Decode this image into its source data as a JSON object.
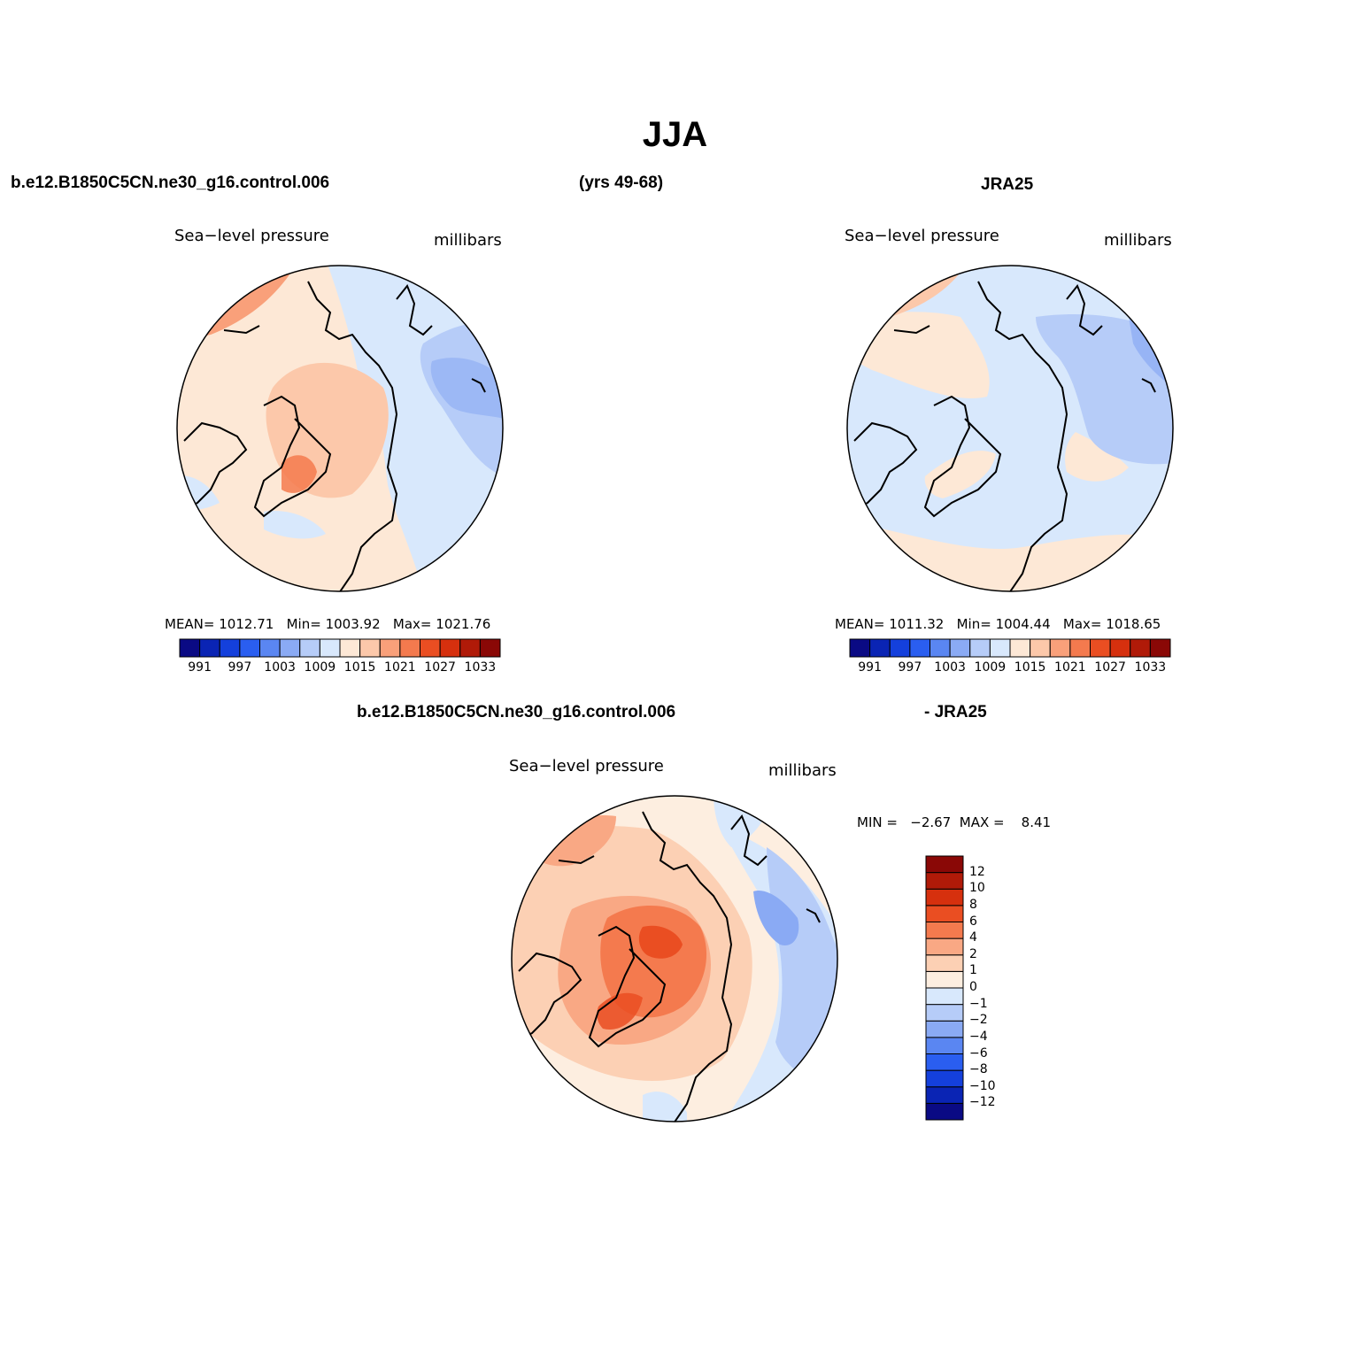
{
  "figure": {
    "title": "JJA",
    "case_name": "b.e12.B1850C5CN.ne30_g16.control.006",
    "years": "(yrs 49-68)",
    "obs_name": "JRA25",
    "diff_case_name": "b.e12.B1850C5CN.ne30_g16.control.006",
    "diff_obs_name": "- JRA25"
  },
  "panels": {
    "model": {
      "variable": "Sea−level pressure",
      "units": "millibars",
      "mean_label": "MEAN=",
      "mean": "1012.71",
      "min_label": "Min=",
      "min": "1003.92",
      "max_label": "Max=",
      "max": "1021.76"
    },
    "obs": {
      "variable": "Sea−level pressure",
      "units": "millibars",
      "mean_label": "MEAN=",
      "mean": "1011.32",
      "min_label": "Min=",
      "min": "1004.44",
      "max_label": "Max=",
      "max": "1018.65"
    },
    "diff": {
      "variable": "Sea−level pressure",
      "units": "millibars",
      "min_label": "MIN =",
      "min": "−2.67",
      "max_label": "MAX =",
      "max": "8.41"
    }
  },
  "colorbars": {
    "abs": {
      "colors": [
        "#0a0a84",
        "#0a24b4",
        "#1440dc",
        "#2a5ef0",
        "#5a86f2",
        "#8aaaf4",
        "#b6ccf8",
        "#d8e8fc",
        "#fde8d6",
        "#fcc8aa",
        "#f9a07a",
        "#f47a4e",
        "#ea4e22",
        "#d6300e",
        "#b01a08",
        "#8a0806"
      ],
      "tick_labels": [
        "991",
        "997",
        "1003",
        "1009",
        "1015",
        "1021",
        "1027",
        "1033"
      ]
    },
    "diff": {
      "colors": [
        "#0a0a84",
        "#0a24b4",
        "#1440dc",
        "#2a5ef0",
        "#5a86f2",
        "#8aaaf4",
        "#b6ccf8",
        "#d8e8fc",
        "#fdeee0",
        "#fcd0b4",
        "#f9a884",
        "#f47a4e",
        "#ea4e22",
        "#d6300e",
        "#b01a08",
        "#8a0806"
      ],
      "tick_labels": [
        "−12",
        "−10",
        "−8",
        "−6",
        "−4",
        "−2",
        "−1",
        "0",
        "1",
        "2",
        "4",
        "6",
        "8",
        "10",
        "12"
      ]
    }
  },
  "chart_data": [
    {
      "type": "heatmap",
      "title": "Sea−level pressure",
      "subtitle": "b.e12.B1850C5CN.ne30_g16.control.006 (yrs 49-68)",
      "units": "millibars",
      "projection": "north polar stereographic",
      "mean": 1012.71,
      "min": 1003.92,
      "max": 1021.76,
      "contour_levels": [
        991,
        994,
        997,
        1000,
        1003,
        1006,
        1009,
        1012,
        1015,
        1018,
        1021,
        1024,
        1027,
        1030,
        1033
      ]
    },
    {
      "type": "heatmap",
      "title": "Sea−level pressure",
      "subtitle": "JRA25",
      "units": "millibars",
      "projection": "north polar stereographic",
      "mean": 1011.32,
      "min": 1004.44,
      "max": 1018.65,
      "contour_levels": [
        991,
        994,
        997,
        1000,
        1003,
        1006,
        1009,
        1012,
        1015,
        1018,
        1021,
        1024,
        1027,
        1030,
        1033
      ]
    },
    {
      "type": "heatmap",
      "title": "Sea−level pressure",
      "subtitle": "b.e12.B1850C5CN.ne30_g16.control.006 - JRA25",
      "units": "millibars",
      "projection": "north polar stereographic",
      "min": -2.67,
      "max": 8.41,
      "contour_levels": [
        -12,
        -10,
        -8,
        -6,
        -4,
        -2,
        -1,
        0,
        1,
        2,
        4,
        6,
        8,
        10,
        12
      ]
    }
  ]
}
